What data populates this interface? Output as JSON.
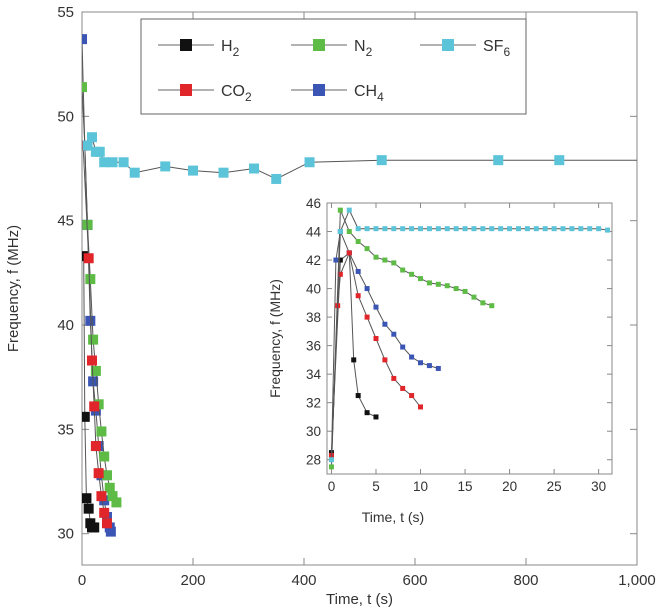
{
  "chart_data": [
    {
      "type": "line",
      "xlabel": "Time, t (s)",
      "ylabel": "Frequency, f (MHz)",
      "xlim": [
        0,
        1000
      ],
      "ylim": [
        28.5,
        55
      ],
      "xticks": [
        0,
        200,
        400,
        600,
        800,
        1000
      ],
      "xtick_labels": [
        "0",
        "200",
        "400",
        "600",
        "800",
        "1,000"
      ],
      "yticks": [
        30,
        35,
        40,
        45,
        50,
        55
      ],
      "ytick_labels": [
        "30",
        "35",
        "40",
        "45",
        "50",
        "55"
      ],
      "legend": {
        "placement": "top"
      },
      "series": [
        {
          "name": "H2",
          "label_main": "H",
          "label_sub": "2",
          "color": "#111111",
          "points": [
            [
              3,
              43.3
            ],
            [
              5,
              35.6
            ],
            [
              8,
              31.7
            ],
            [
              12,
              31.2
            ],
            [
              15,
              30.5
            ],
            [
              18,
              30.3
            ],
            [
              22,
              30.3
            ]
          ]
        },
        {
          "name": "N2",
          "label_main": "N",
          "label_sub": "2",
          "color": "#5dbb46",
          "points": [
            [
              0,
              51.4
            ],
            [
              5,
              48.6
            ],
            [
              10,
              44.8
            ],
            [
              15,
              42.2
            ],
            [
              20,
              39.3
            ],
            [
              25,
              37.8
            ],
            [
              30,
              36.2
            ],
            [
              35,
              34.9
            ],
            [
              40,
              33.7
            ],
            [
              45,
              32.8
            ],
            [
              50,
              32.2
            ],
            [
              55,
              31.8
            ],
            [
              62,
              31.5
            ]
          ]
        },
        {
          "name": "SF6",
          "label_main": "SF",
          "label_sub": "6",
          "color": "#5bc4d9",
          "points": [
            [
              10,
              48.6
            ],
            [
              18,
              49.0
            ],
            [
              25,
              48.3
            ],
            [
              32,
              48.3
            ],
            [
              40,
              47.8
            ],
            [
              55,
              47.8
            ],
            [
              75,
              47.8
            ],
            [
              95,
              47.3
            ],
            [
              150,
              47.6
            ],
            [
              200,
              47.4
            ],
            [
              255,
              47.3
            ],
            [
              310,
              47.5
            ],
            [
              350,
              47.0
            ],
            [
              410,
              47.8
            ],
            [
              540,
              47.9
            ],
            [
              750,
              47.9
            ],
            [
              860,
              47.9
            ],
            [
              1000,
              47.9
            ]
          ]
        },
        {
          "name": "CO2",
          "label_main": "CO",
          "label_sub": "2",
          "color": "#e0262a",
          "points": [
            [
              2,
              48.6
            ],
            [
              12,
              43.2
            ],
            [
              18,
              38.3
            ],
            [
              22,
              36.1
            ],
            [
              25,
              34.2
            ],
            [
              30,
              32.9
            ],
            [
              35,
              31.8
            ],
            [
              40,
              31.0
            ],
            [
              45,
              30.5
            ]
          ]
        },
        {
          "name": "CH4",
          "label_main": "CH",
          "label_sub": "4",
          "color": "#3b55b4",
          "points": [
            [
              0,
              53.7
            ],
            [
              5,
              48.6
            ],
            [
              10,
              44.8
            ],
            [
              15,
              40.2
            ],
            [
              20,
              37.3
            ],
            [
              25,
              35.9
            ],
            [
              30,
              34.2
            ],
            [
              35,
              32.8
            ],
            [
              40,
              31.6
            ],
            [
              45,
              30.8
            ],
            [
              50,
              30.3
            ],
            [
              52,
              30.1
            ]
          ]
        }
      ]
    },
    {
      "type": "line",
      "inset": true,
      "xlabel": "Time, t (s)",
      "ylabel": "Frequency, f (MHz)",
      "xlim": [
        -0.5,
        31.5
      ],
      "ylim": [
        27,
        46
      ],
      "xticks": [
        0,
        5,
        10,
        15,
        20,
        25,
        30
      ],
      "xtick_labels": [
        "0",
        "5",
        "10",
        "15",
        "20",
        "25",
        "30"
      ],
      "yticks": [
        28,
        30,
        32,
        34,
        36,
        38,
        40,
        42,
        44,
        46
      ],
      "ytick_labels": [
        "28",
        "30",
        "32",
        "34",
        "36",
        "38",
        "40",
        "42",
        "44",
        "46"
      ],
      "series": [
        {
          "name": "H2",
          "color": "#111111",
          "points": [
            [
              0,
              28.5
            ],
            [
              1,
              42
            ],
            [
              2,
              42.5
            ],
            [
              2.5,
              35
            ],
            [
              3,
              32.5
            ],
            [
              4,
              31.3
            ],
            [
              5,
              31
            ]
          ]
        },
        {
          "name": "N2",
          "color": "#5dbb46",
          "points": [
            [
              0,
              27.5
            ],
            [
              1,
              45.5
            ],
            [
              2,
              44
            ],
            [
              3,
              43.3
            ],
            [
              4,
              42.8
            ],
            [
              5,
              42.2
            ],
            [
              6,
              42
            ],
            [
              7,
              41.8
            ],
            [
              8,
              41.3
            ],
            [
              9,
              41
            ],
            [
              10,
              40.7
            ],
            [
              11,
              40.4
            ],
            [
              12,
              40.3
            ],
            [
              13,
              40.2
            ],
            [
              14,
              40
            ],
            [
              15,
              39.8
            ],
            [
              16,
              39.4
            ],
            [
              17,
              39
            ],
            [
              18,
              38.8
            ]
          ]
        },
        {
          "name": "SF6",
          "color": "#5bc4d9",
          "points": [
            [
              0,
              28
            ],
            [
              1,
              44
            ],
            [
              2,
              45.5
            ],
            [
              3,
              44.2
            ],
            [
              4,
              44.2
            ],
            [
              5,
              44.2
            ],
            [
              6,
              44.2
            ],
            [
              7,
              44.2
            ],
            [
              8,
              44.2
            ],
            [
              9,
              44.2
            ],
            [
              10,
              44.2
            ],
            [
              11,
              44.2
            ],
            [
              12,
              44.2
            ],
            [
              13,
              44.2
            ],
            [
              14,
              44.2
            ],
            [
              15,
              44.2
            ],
            [
              16,
              44.2
            ],
            [
              17,
              44.2
            ],
            [
              18,
              44.2
            ],
            [
              19,
              44.2
            ],
            [
              20,
              44.2
            ],
            [
              21,
              44.2
            ],
            [
              22,
              44.2
            ],
            [
              23,
              44.2
            ],
            [
              24,
              44.2
            ],
            [
              25,
              44.2
            ],
            [
              26,
              44.2
            ],
            [
              27,
              44.2
            ],
            [
              28,
              44.2
            ],
            [
              29,
              44.2
            ],
            [
              30,
              44.2
            ],
            [
              31,
              44.1
            ]
          ]
        },
        {
          "name": "CO2",
          "color": "#e0262a",
          "points": [
            [
              0,
              28.3
            ],
            [
              0.7,
              38.8
            ],
            [
              1,
              41
            ],
            [
              2,
              42.5
            ],
            [
              3,
              39.5
            ],
            [
              4,
              38
            ],
            [
              5,
              36.5
            ],
            [
              6,
              35
            ],
            [
              7,
              33.7
            ],
            [
              8,
              33
            ],
            [
              9,
              32.5
            ],
            [
              10,
              31.7
            ]
          ]
        },
        {
          "name": "CH4",
          "color": "#3b55b4",
          "points": [
            [
              0,
              28.2
            ],
            [
              0.5,
              42
            ],
            [
              1,
              44
            ],
            [
              2,
              42.5
            ],
            [
              3,
              41.2
            ],
            [
              4,
              40
            ],
            [
              5,
              38.7
            ],
            [
              6,
              37.5
            ],
            [
              7,
              36.8
            ],
            [
              8,
              35.9
            ],
            [
              9,
              35.2
            ],
            [
              10,
              34.8
            ],
            [
              11,
              34.6
            ],
            [
              12,
              34.4
            ]
          ]
        }
      ]
    }
  ]
}
